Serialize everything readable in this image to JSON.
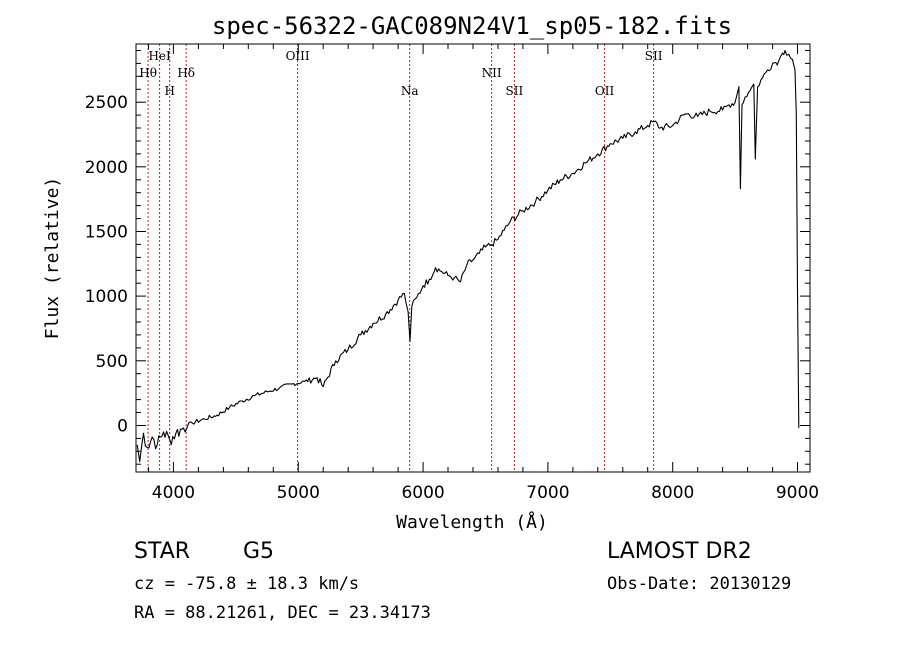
{
  "chart_data": {
    "type": "line",
    "title": "spec-56322-GAC089N24V1_sp05-182.fits",
    "xlabel": "Wavelength (Å)",
    "ylabel": "Flux (relative)",
    "xlim": [
      3700,
      9100
    ],
    "ylim": [
      -360,
      2950
    ],
    "xticks": [
      4000,
      5000,
      6000,
      7000,
      8000,
      9000
    ],
    "yticks": [
      0,
      500,
      1000,
      1500,
      2000,
      2500
    ],
    "grid": false,
    "line_color": "#000000",
    "marker_color": "#b22222",
    "lines": [
      {
        "label": "Hθ",
        "x": 3797,
        "row": 1
      },
      {
        "label": "HeI",
        "x": 3889,
        "row": 0
      },
      {
        "label": "H",
        "x": 3970,
        "row": 2
      },
      {
        "label": "Hδ",
        "x": 4102,
        "row": 1
      },
      {
        "label": "OIII",
        "x": 4995,
        "row": 0
      },
      {
        "label": "Na",
        "x": 5893,
        "row": 2
      },
      {
        "label": "NII",
        "x": 6549,
        "row": 1
      },
      {
        "label": "SII",
        "x": 6732,
        "row": 2
      },
      {
        "label": "OII",
        "x": 7454,
        "row": 2
      },
      {
        "label": "SII",
        "x": 7847,
        "row": 0
      }
    ],
    "series": [
      {
        "x": [
          3710,
          3730,
          3760,
          3790,
          3830,
          3870,
          3920,
          3970,
          4020,
          4080,
          4150,
          4250,
          4350,
          4450,
          4550,
          4650,
          4750,
          4850,
          4950,
          5050,
          5150,
          5200,
          5300,
          5400,
          5500,
          5600,
          5700,
          5800,
          5850,
          5880,
          5895,
          5910,
          5950,
          6000,
          6050,
          6100,
          6150,
          6200,
          6250,
          6300,
          6350,
          6400,
          6450,
          6500,
          6550,
          6600,
          6650,
          6700,
          6800,
          6900,
          7000,
          7100,
          7200,
          7300,
          7400,
          7500,
          7600,
          7700,
          7800,
          7850,
          7900,
          8000,
          8100,
          8200,
          8300,
          8400,
          8450,
          8500,
          8530,
          8542,
          8555,
          8580,
          8620,
          8650,
          8662,
          8680,
          8720,
          8760,
          8800,
          8850,
          8880,
          8900,
          8930,
          8960,
          8980,
          8990,
          9000,
          9010
        ],
        "y": [
          -150,
          -280,
          -60,
          -170,
          -90,
          -150,
          -50,
          -110,
          -60,
          -20,
          20,
          50,
          80,
          140,
          190,
          230,
          260,
          290,
          320,
          340,
          370,
          300,
          500,
          590,
          700,
          790,
          860,
          970,
          1020,
          880,
          650,
          920,
          990,
          1080,
          1130,
          1220,
          1190,
          1160,
          1140,
          1110,
          1240,
          1280,
          1330,
          1380,
          1400,
          1440,
          1510,
          1580,
          1660,
          1730,
          1820,
          1900,
          1950,
          2030,
          2100,
          2180,
          2220,
          2270,
          2320,
          2350,
          2300,
          2320,
          2410,
          2390,
          2430,
          2440,
          2480,
          2500,
          2620,
          1830,
          2480,
          2540,
          2590,
          2640,
          2060,
          2620,
          2690,
          2750,
          2800,
          2820,
          2880,
          2900,
          2870,
          2830,
          2750,
          2400,
          1050,
          -20
        ]
      }
    ]
  },
  "info": {
    "object_class": "STAR",
    "subclass": "G5",
    "redshift_line": "cz = -75.8 ± 18.3 km/s",
    "coords_line": "RA =  88.21261, DEC =  23.34173",
    "survey": "LAMOST DR2",
    "obs_date_line": "Obs-Date: 20130129"
  }
}
